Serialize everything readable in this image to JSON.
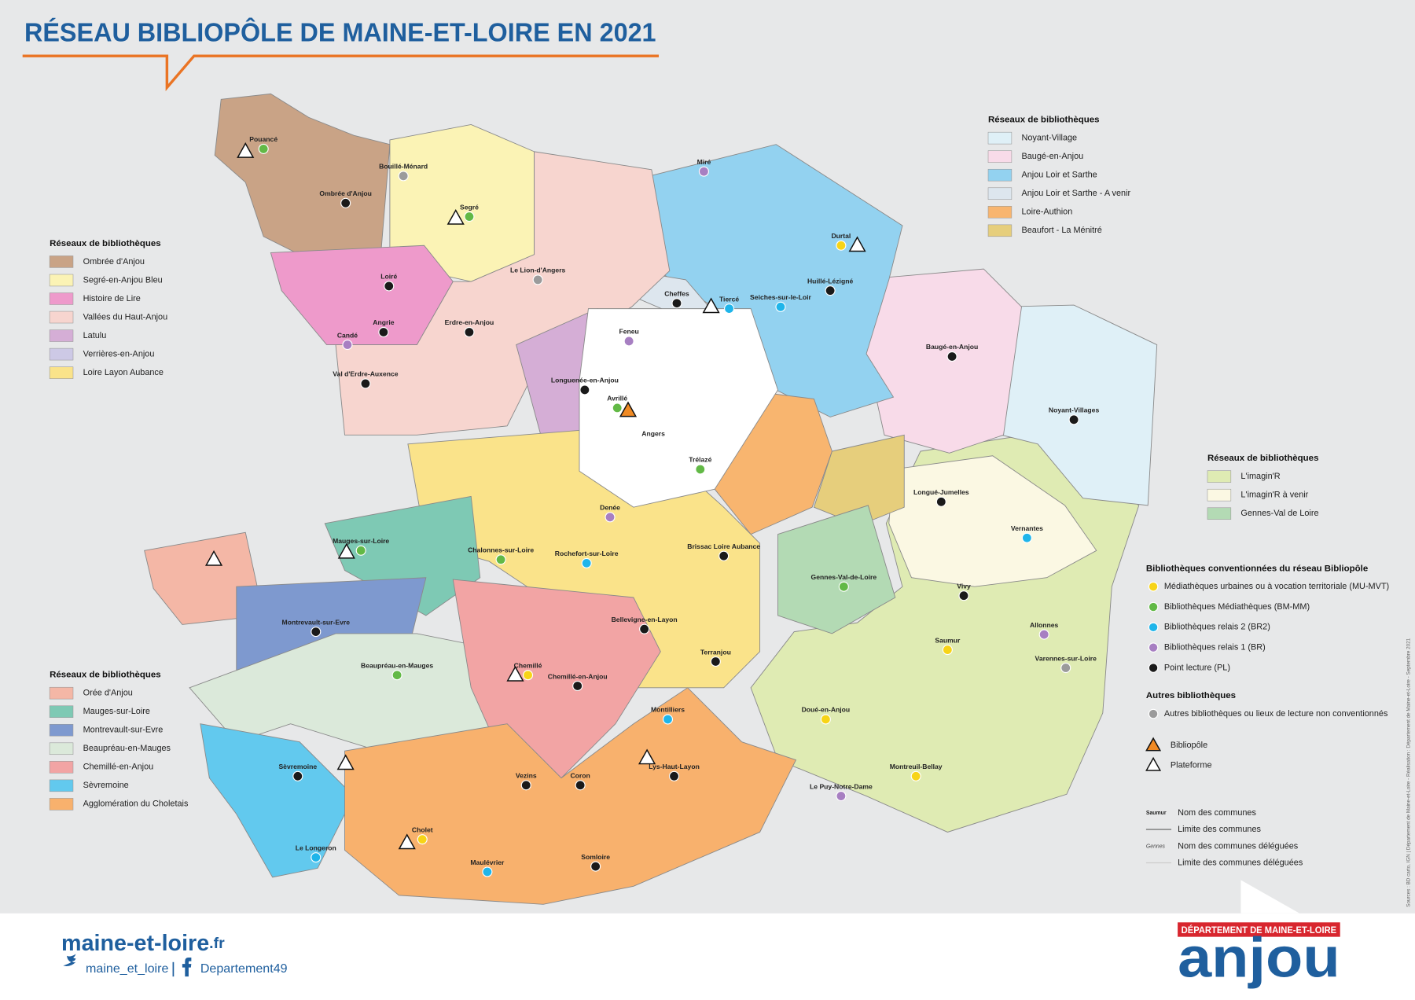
{
  "title": "RÉSEAU BIBLIOPÔLE DE MAINE-ET-LOIRE EN 2021",
  "legends": [
    {
      "title": "Réseaux de bibliothèques",
      "items": [
        {
          "label": "Ombrée d'Anjou",
          "color": "#c9a386"
        },
        {
          "label": "Segré-en-Anjou Bleu",
          "color": "#fbf3b5"
        },
        {
          "label": "Histoire de Lire",
          "color": "#ee9acb"
        },
        {
          "label": "Vallées du Haut-Anjou",
          "color": "#f7d5cf"
        },
        {
          "label": "Latulu",
          "color": "#d5aed6"
        },
        {
          "label": "Verrières-en-Anjou",
          "color": "#cdc9e6"
        },
        {
          "label": "Loire Layon Aubance",
          "color": "#fae38a"
        }
      ]
    },
    {
      "title": "Réseaux de bibliothèques",
      "items": [
        {
          "label": "Orée d'Anjou",
          "color": "#f4b7a6"
        },
        {
          "label": "Mauges-sur-Loire",
          "color": "#7ec9b4"
        },
        {
          "label": "Montrevault-sur-Evre",
          "color": "#7e99cf"
        },
        {
          "label": "Beaupréau-en-Mauges",
          "color": "#dbe9da"
        },
        {
          "label": "Chemillé-en-Anjou",
          "color": "#f2a4a4"
        },
        {
          "label": "Sèvremoine",
          "color": "#62c9ee"
        },
        {
          "label": "Agglomération du Choletais",
          "color": "#f8b16d"
        }
      ]
    },
    {
      "title": "Réseaux de bibliothèques",
      "items": [
        {
          "label": "Noyant-Village",
          "color": "#dff0f7"
        },
        {
          "label": "Baugé-en-Anjou",
          "color": "#f8dbe9"
        },
        {
          "label": "Anjou Loir et Sarthe",
          "color": "#93d2f0"
        },
        {
          "label": "Anjou Loir et Sarthe - A venir",
          "color": "#dde6ee"
        },
        {
          "label": "Loire-Authion",
          "color": "#f8b56f"
        },
        {
          "label": "Beaufort - La Ménitré",
          "color": "#e6ce7c"
        }
      ]
    },
    {
      "title": "Réseaux de bibliothèques",
      "items": [
        {
          "label": "L'imagin'R",
          "color": "#dfebb3"
        },
        {
          "label": "L'imagin'R à venir",
          "color": "#fbf8e3"
        },
        {
          "label": "Gennes-Val de Loire",
          "color": "#b3dab4"
        }
      ]
    }
  ],
  "libraries": {
    "title": "Bibliothèques conventionnées du réseau Bibliopôle",
    "items": [
      {
        "label": "Médiathèques urbaines ou à vocation territoriale (MU-MVT)",
        "color": "#f7d417",
        "places": [
          "Saumur",
          "Cholet",
          "Durtal",
          "Chemillé",
          "Doué-en-Anjou",
          "Montreuil-Bellay"
        ]
      },
      {
        "label": "Bibliothèques Médiathèques (BM-MM)",
        "color": "#62b946",
        "places": [
          "Segré",
          "Pouancé",
          "Beaupréau-en-Mauges",
          "Mauges-sur-Loire",
          "Chalonnes-sur-Loire",
          "Avrillé",
          "Trélazé",
          "Gennes-Val-de-Loire"
        ]
      },
      {
        "label": "Bibliothèques relais 2 (BR2)",
        "color": "#1fb5ea",
        "places": [
          "Tiercé",
          "Seiches-sur-le-Loir",
          "Rochefort-sur-Loire",
          "Maulévrier",
          "Vernantes",
          "Le Longeron",
          "Montilliers"
        ]
      },
      {
        "label": "Bibliothèques relais 1 (BR)",
        "color": "#a77fc2",
        "places": [
          "Miré",
          "Candé",
          "Denée",
          "Feneu",
          "Allonnes",
          "Le Puy-Notre-Dame"
        ]
      },
      {
        "label": "Point lecture (PL)",
        "color": "#1a1a1a",
        "places": [
          "Ombrée d'Anjou",
          "Loiré",
          "Angrie",
          "Erdre-en-Anjou",
          "Val d'Erdre-Auxence",
          "Longuenée-en-Anjou",
          "Brissac Loire Aubance",
          "Bellevigne-en-Layon",
          "Lys-Haut-Layon",
          "Montrevault-sur-Evre",
          "Noyant-Villages",
          "Baugé-en-Anjou",
          "Longué-Jumelles",
          "Chemillé-en-Anjou",
          "Cheffes",
          "Huillé-Lézigné",
          "Vivy",
          "Terranjou",
          "Sèvremoine",
          "Vezins",
          "Somloire",
          "Coron"
        ]
      }
    ]
  },
  "others": {
    "title": "Autres bibliothèques",
    "items": [
      {
        "label": "Autres bibliothèques ou lieux de lecture non conventionnés",
        "color": "#9b9b9b",
        "places": [
          "Bouillé-Ménard",
          "Le Lion-d'Angers",
          "Varennes-sur-Loire"
        ]
      }
    ]
  },
  "symbols": [
    {
      "label": "Bibliopôle",
      "color": "#f08a24"
    },
    {
      "label": "Plateforme",
      "color": "#ffffff"
    }
  ],
  "cities": [
    "Angers"
  ],
  "key": {
    "sample_commune": "Saumur",
    "communes": "Nom des communes",
    "limits": "Limite des communes",
    "sample_delegated": "Gennes",
    "delegated": "Nom des communes déléguées",
    "delegated_limits": "Limite des communes déléguées"
  },
  "source": "Sources : BD carto, IGN | Département de Maine-et-Loire - Réalisation : Département de Maine-et-Loire - Septembre 2021",
  "footer": {
    "site": "maine-et-loire",
    "site_tld": ".fr",
    "twitter": "maine_et_loire",
    "facebook": "Departement49",
    "logo_band": "DÉPARTEMENT DE MAINE-ET-LOIRE",
    "logo": "anjou"
  }
}
